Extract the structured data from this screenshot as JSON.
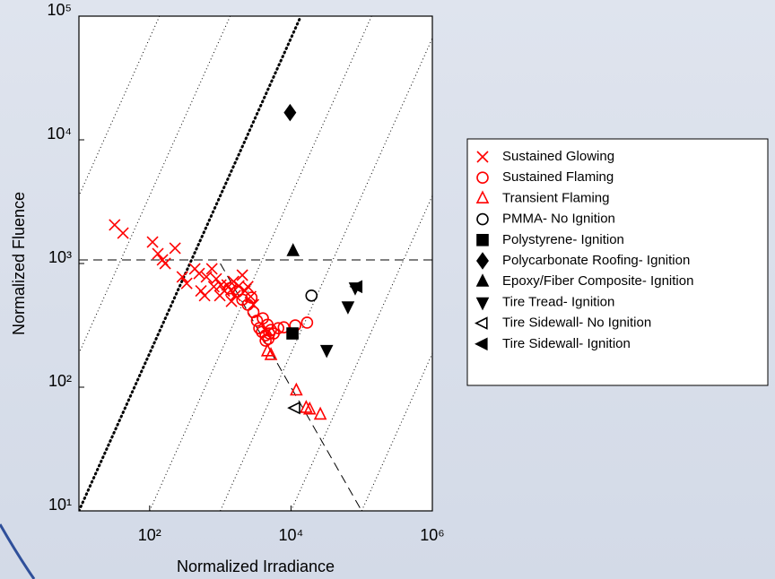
{
  "chart_data": {
    "type": "scatter",
    "x_label": "Normalized Irradiance",
    "y_label": "Normalized Fluence",
    "xscale": "log",
    "yscale": "log",
    "xlim": [
      10,
      1000000
    ],
    "ylim": [
      10,
      100000
    ],
    "xticks": [
      {
        "value": 100,
        "label": "10²"
      },
      {
        "value": 10000,
        "label": "10⁴"
      },
      {
        "value": 1000000,
        "label": "10⁶"
      }
    ],
    "yticks": [
      {
        "value": 10,
        "label": "10¹"
      },
      {
        "value": 100,
        "label": "10²"
      },
      {
        "value": 1000,
        "label": "10³"
      },
      {
        "value": 10000,
        "label": "10⁴"
      },
      {
        "value": 100000,
        "label": "10⁵"
      }
    ],
    "reference_lines": [
      {
        "x": [
          10,
          1000000
        ],
        "y": [
          1070,
          1070
        ],
        "style": "dashed"
      },
      {
        "x": [
          1000,
          100000
        ],
        "y": [
          1000,
          10
        ],
        "style": "dashed"
      },
      {
        "x": [
          10,
          13800
        ],
        "y": [
          10,
          100000
        ],
        "style": "dotted-thick"
      },
      {
        "x": [
          0.1,
          138
        ],
        "y": [
          10,
          100000
        ],
        "style": "dotted"
      },
      {
        "x": [
          1,
          1380
        ],
        "y": [
          10,
          100000
        ],
        "style": "dotted"
      },
      {
        "x": [
          100,
          138000
        ],
        "y": [
          10,
          100000
        ],
        "style": "dotted"
      },
      {
        "x": [
          1000,
          1380000
        ],
        "y": [
          10,
          100000
        ],
        "style": "dotted"
      },
      {
        "x": [
          10000,
          13800000
        ],
        "y": [
          10,
          100000
        ],
        "style": "dotted"
      },
      {
        "x": [
          100000,
          138000000
        ],
        "y": [
          10,
          100000
        ],
        "style": "dotted"
      }
    ],
    "series": [
      {
        "name": "Sustained Glowing",
        "color": "#ff0000",
        "marker": "x",
        "filled": false,
        "x": [
          32,
          42,
          110,
          131,
          152,
          166,
          229,
          290,
          335,
          436,
          502,
          533,
          636,
          760,
          875,
          1020,
          1140,
          1250,
          1410,
          1540,
          1630,
          1830,
          2050,
          2240,
          1440,
          2450,
          2690,
          2940,
          810,
          985,
          600
        ],
        "y": [
          2050,
          1760,
          1490,
          1200,
          1070,
          1000,
          1330,
          780,
          690,
          905,
          830,
          600,
          780,
          905,
          750,
          670,
          600,
          670,
          610,
          715,
          550,
          660,
          805,
          600,
          495,
          650,
          540,
          465,
          650,
          550,
          550
        ]
      },
      {
        "name": "Sustained Flaming",
        "color": "#ff0000",
        "marker": "circle",
        "filled": false,
        "x": [
          1350,
          1730,
          2050,
          2450,
          2760,
          2940,
          3300,
          3560,
          3880,
          4380,
          4800,
          5200,
          5700,
          6600,
          7900,
          11500,
          16900,
          4650,
          4000,
          4930,
          4380
        ],
        "y": [
          630,
          590,
          510,
          465,
          530,
          405,
          345,
          300,
          280,
          263,
          246,
          290,
          272,
          300,
          305,
          316,
          333,
          320,
          360,
          272,
          238
        ]
      },
      {
        "name": "Transient Flaming",
        "color": "#ff0000",
        "marker": "triangle-up",
        "filled": false,
        "x": [
          4650,
          5200,
          11900,
          16400,
          18400,
          26000
        ],
        "y": [
          195,
          182,
          94,
          68,
          66,
          60
        ]
      },
      {
        "name": "PMMA- No Ignition",
        "color": "#000000",
        "marker": "circle",
        "filled": false,
        "x": [
          19500
        ],
        "y": [
          550
        ]
      },
      {
        "name": "Polystyrene- Ignition",
        "color": "#000000",
        "marker": "square",
        "filled": true,
        "x": [
          10500
        ],
        "y": [
          272
        ]
      },
      {
        "name": "Polycarbonate Roofing- Ignition",
        "color": "#000000",
        "marker": "diamond",
        "filled": true,
        "x": [
          9700
        ],
        "y": [
          16600
        ]
      },
      {
        "name": "Epoxy/Fiber Composite- Ignition",
        "color": "#000000",
        "marker": "triangle-up",
        "filled": true,
        "x": [
          10700
        ],
        "y": [
          1260
        ]
      },
      {
        "name": "Tire Tread- Ignition",
        "color": "#000000",
        "marker": "triangle-down",
        "filled": true,
        "x": [
          64000,
          32000,
          81000
        ],
        "y": [
          450,
          200,
          640
        ]
      },
      {
        "name": "Tire Sidewall- No Ignition",
        "color": "#000000",
        "marker": "triangle-left",
        "filled": false,
        "x": [
          11500
        ],
        "y": [
          68
        ]
      },
      {
        "name": "Tire Sidewall- Ignition",
        "color": "#000000",
        "marker": "triangle-left",
        "filled": true,
        "x": [
          87000
        ],
        "y": [
          650
        ]
      }
    ]
  }
}
